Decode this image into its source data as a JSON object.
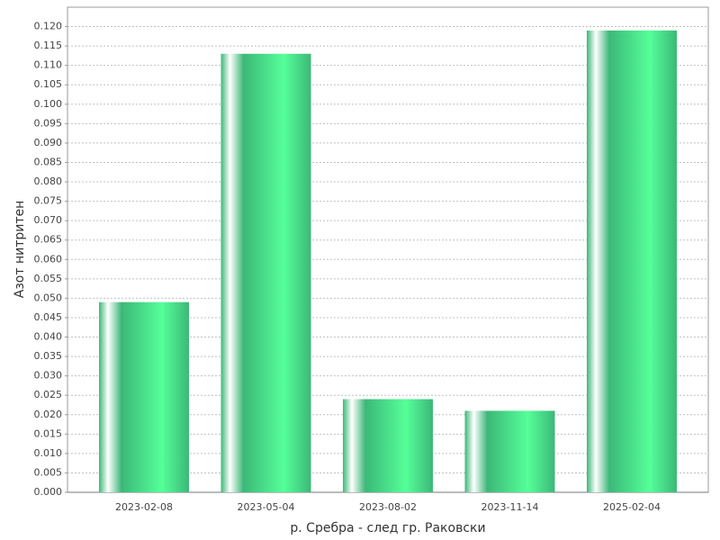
{
  "chart_data": {
    "type": "bar",
    "xlabel": "р. Сребра - след гр. Раковски",
    "ylabel": "Азот нитритен",
    "categories": [
      "2023-02-08",
      "2023-05-04",
      "2023-08-02",
      "2023-11-14",
      "2025-02-04"
    ],
    "values": [
      0.049,
      0.113,
      0.024,
      0.021,
      0.119
    ],
    "color": "#3cb878",
    "ylim": [
      0,
      0.125
    ],
    "yticks": [
      {
        "value": 0,
        "label": "0.000"
      },
      {
        "value": 0.005,
        "label": "0.005"
      },
      {
        "value": 0.01,
        "label": "0.010"
      },
      {
        "value": 0.015,
        "label": "0.015"
      },
      {
        "value": 0.02,
        "label": "0.020"
      },
      {
        "value": 0.025,
        "label": "0.025"
      },
      {
        "value": 0.03,
        "label": "0.030"
      },
      {
        "value": 0.035,
        "label": "0.035"
      },
      {
        "value": 0.04,
        "label": "0.040"
      },
      {
        "value": 0.045,
        "label": "0.045"
      },
      {
        "value": 0.05,
        "label": "0.050"
      },
      {
        "value": 0.055,
        "label": "0.055"
      },
      {
        "value": 0.06,
        "label": "0.060"
      },
      {
        "value": 0.065,
        "label": "0.065"
      },
      {
        "value": 0.07,
        "label": "0.070"
      },
      {
        "value": 0.075,
        "label": "0.075"
      },
      {
        "value": 0.08,
        "label": "0.080"
      },
      {
        "value": 0.085,
        "label": "0.085"
      },
      {
        "value": 0.09,
        "label": "0.090"
      },
      {
        "value": 0.095,
        "label": "0.095"
      },
      {
        "value": 0.1,
        "label": "0.100"
      },
      {
        "value": 0.105,
        "label": "0.105"
      },
      {
        "value": 0.11,
        "label": "0.110"
      },
      {
        "value": 0.115,
        "label": "0.115"
      },
      {
        "value": 0.12,
        "label": "0.120"
      }
    ],
    "grid": true
  }
}
